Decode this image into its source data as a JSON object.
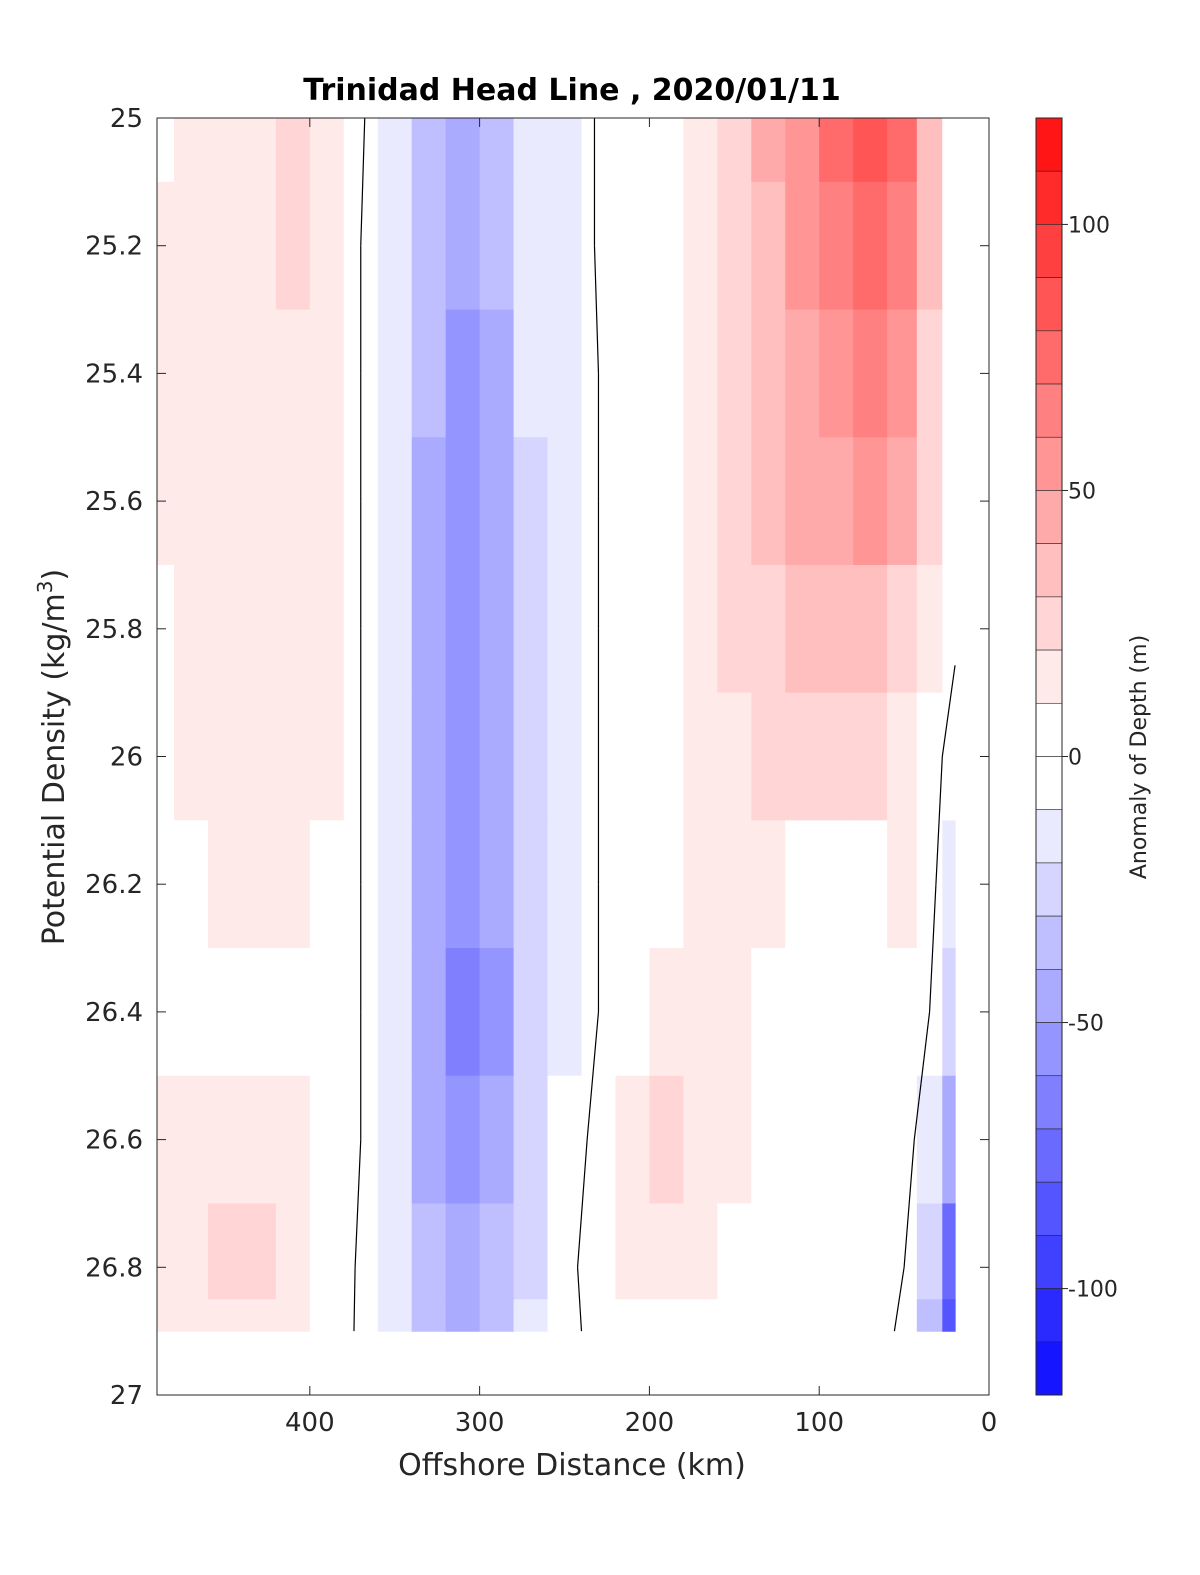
{
  "chart_data": {
    "type": "heatmap",
    "title": "Trinidad Head Line , 2020/01/11",
    "xlabel": "Offshore Distance (km)",
    "ylabel": "Potential Density (kg/m",
    "ylabel_superscript": "3",
    "ylabel_close": ")",
    "colorbar_label": "Anomaly of Depth (m)",
    "xlim": [
      490,
      0
    ],
    "x_reversed": true,
    "ylim": [
      25,
      27
    ],
    "y_reversed": true,
    "x_ticks": [
      400,
      300,
      200,
      100,
      0
    ],
    "y_ticks": [
      25,
      25.2,
      25.4,
      25.6,
      25.8,
      26,
      26.2,
      26.4,
      26.6,
      26.8,
      27
    ],
    "y_tick_labels": [
      "25",
      "25.2",
      "25.4",
      "25.6",
      "25.8",
      "26",
      "26.2",
      "26.4",
      "26.6",
      "26.8",
      "27"
    ],
    "colorbar_range": [
      -120,
      120
    ],
    "colorbar_ticks": [
      100,
      50,
      0,
      -50,
      -100
    ],
    "contour_levels_step": 10,
    "zero_contour_color": "#000000",
    "grid": false,
    "x": [
      490,
      470,
      450,
      430,
      410,
      390,
      370,
      350,
      330,
      310,
      290,
      270,
      250,
      230,
      210,
      190,
      170,
      150,
      130,
      110,
      90,
      70,
      50,
      35,
      20
    ],
    "y": [
      25,
      25.2,
      25.4,
      25.6,
      25.8,
      26,
      26.2,
      26.4,
      26.6,
      26.8,
      26.9
    ],
    "z": [
      [
        10,
        18,
        15,
        18,
        22,
        15,
        2,
        -15,
        -40,
        -45,
        -35,
        -15,
        -15,
        2,
        5,
        2,
        15,
        28,
        45,
        60,
        75,
        90,
        80,
        40,
        10
      ],
      [
        15,
        15,
        18,
        20,
        22,
        15,
        0,
        -15,
        -40,
        -50,
        -40,
        -20,
        -15,
        2,
        5,
        5,
        15,
        25,
        40,
        55,
        70,
        80,
        70,
        35,
        10
      ],
      [
        12,
        15,
        18,
        18,
        18,
        12,
        0,
        -15,
        -40,
        -52,
        -45,
        -20,
        -15,
        0,
        2,
        5,
        15,
        25,
        35,
        50,
        60,
        70,
        60,
        30,
        8
      ],
      [
        15,
        12,
        15,
        15,
        15,
        12,
        0,
        -15,
        -42,
        -55,
        -45,
        -25,
        -15,
        0,
        0,
        5,
        15,
        25,
        35,
        45,
        50,
        55,
        45,
        22,
        6
      ],
      [
        10,
        12,
        15,
        15,
        15,
        12,
        0,
        -15,
        -42,
        -55,
        -45,
        -25,
        -15,
        0,
        2,
        5,
        15,
        22,
        30,
        35,
        40,
        40,
        30,
        15,
        2
      ],
      [
        3,
        12,
        15,
        15,
        15,
        12,
        0,
        -15,
        -42,
        -55,
        -45,
        -25,
        -15,
        0,
        2,
        5,
        15,
        18,
        22,
        25,
        28,
        25,
        15,
        5,
        -5
      ],
      [
        2,
        5,
        12,
        15,
        15,
        10,
        0,
        -15,
        -45,
        -60,
        -50,
        -25,
        -15,
        0,
        2,
        5,
        15,
        15,
        12,
        2,
        2,
        5,
        15,
        5,
        -15
      ],
      [
        5,
        5,
        5,
        5,
        8,
        2,
        0,
        -15,
        -45,
        -65,
        -55,
        -25,
        -15,
        0,
        5,
        12,
        18,
        15,
        8,
        2,
        2,
        8,
        10,
        0,
        -25
      ],
      [
        15,
        15,
        15,
        12,
        15,
        10,
        0,
        -20,
        -45,
        -55,
        -45,
        -25,
        -10,
        5,
        12,
        22,
        18,
        12,
        8,
        5,
        2,
        8,
        10,
        -15,
        -50
      ],
      [
        15,
        18,
        25,
        22,
        15,
        10,
        -2,
        -15,
        -40,
        -45,
        -40,
        -25,
        -5,
        8,
        15,
        15,
        12,
        5,
        5,
        5,
        5,
        5,
        0,
        -30,
        -80
      ],
      [
        12,
        15,
        20,
        18,
        12,
        8,
        -2,
        -15,
        -40,
        -45,
        -40,
        -20,
        -5,
        5,
        2,
        2,
        0,
        0,
        5,
        5,
        5,
        5,
        -2,
        -35,
        -90
      ]
    ]
  }
}
